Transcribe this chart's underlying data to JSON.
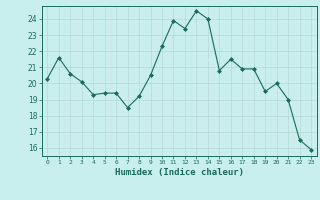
{
  "x": [
    0,
    1,
    2,
    3,
    4,
    5,
    6,
    7,
    8,
    9,
    10,
    11,
    12,
    13,
    14,
    15,
    16,
    17,
    18,
    19,
    20,
    21,
    22,
    23
  ],
  "y": [
    20.3,
    21.6,
    20.6,
    20.1,
    19.3,
    19.4,
    19.4,
    18.5,
    19.2,
    20.5,
    22.3,
    23.9,
    23.4,
    24.5,
    24.0,
    20.8,
    21.5,
    20.9,
    20.9,
    19.5,
    20.0,
    19.0,
    16.5,
    15.9
  ],
  "xlabel": "Humidex (Indice chaleur)",
  "ylim": [
    15.5,
    24.8
  ],
  "yticks": [
    16,
    17,
    18,
    19,
    20,
    21,
    22,
    23,
    24
  ],
  "xticks": [
    0,
    1,
    2,
    3,
    4,
    5,
    6,
    7,
    8,
    9,
    10,
    11,
    12,
    13,
    14,
    15,
    16,
    17,
    18,
    19,
    20,
    21,
    22,
    23
  ],
  "line_color": "#1a6b5a",
  "marker": "D",
  "marker_size": 2.0,
  "bg_color": "#c8eeee",
  "grid_major_color": "#b8d8d8",
  "grid_minor_color": "#d4ecec",
  "tick_color": "#1a6b5a",
  "label_color": "#1a6b5a",
  "spine_color": "#1a6b5a"
}
